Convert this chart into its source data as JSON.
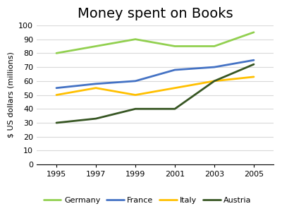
{
  "title": "Money spent on Books",
  "ylabel": "$ US dollars (millions)",
  "years": [
    1995,
    1997,
    1999,
    2001,
    2003,
    2005
  ],
  "series": {
    "Germany": {
      "values": [
        80,
        85,
        90,
        85,
        85,
        95
      ],
      "color": "#92D050",
      "linewidth": 2.0
    },
    "France": {
      "values": [
        55,
        58,
        60,
        68,
        70,
        75
      ],
      "color": "#4472C4",
      "linewidth": 2.0
    },
    "Italy": {
      "values": [
        50,
        55,
        50,
        55,
        60,
        63
      ],
      "color": "#FFC000",
      "linewidth": 2.0
    },
    "Austria": {
      "values": [
        30,
        33,
        40,
        40,
        60,
        72
      ],
      "color": "#375623",
      "linewidth": 2.0
    }
  },
  "ylim": [
    0,
    100
  ],
  "yticks": [
    0,
    10,
    20,
    30,
    40,
    50,
    60,
    70,
    80,
    90,
    100
  ],
  "xticks": [
    1995,
    1997,
    1999,
    2001,
    2003,
    2005
  ],
  "legend_order": [
    "Germany",
    "France",
    "Italy",
    "Austria"
  ],
  "background_color": "#ffffff",
  "grid_color": "#d9d9d9",
  "title_fontsize": 14,
  "axis_label_fontsize": 8,
  "tick_fontsize": 8,
  "legend_fontsize": 8
}
